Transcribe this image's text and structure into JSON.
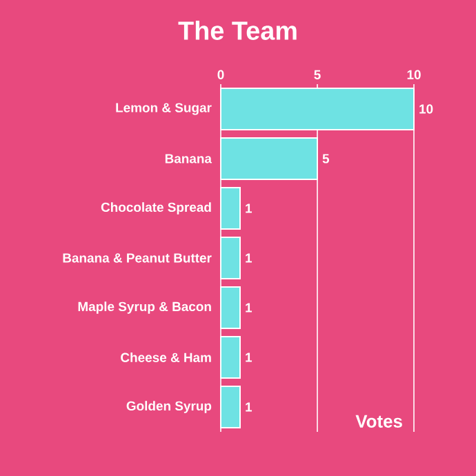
{
  "chart_data": {
    "type": "bar",
    "orientation": "horizontal",
    "title": "The Team",
    "xlabel": "Votes",
    "categories": [
      "Lemon & Sugar",
      "Banana",
      "Chocolate Spread",
      "Banana & Peanut Butter",
      "Maple Syrup & Bacon",
      "Cheese & Ham",
      "Golden Syrup"
    ],
    "values": [
      10,
      5,
      1,
      1,
      1,
      1,
      1
    ],
    "color": "#6ee2e3",
    "xlim": [
      0,
      10
    ],
    "xticks": [
      0,
      5,
      10
    ],
    "grid": "x",
    "data_labels": true
  }
}
